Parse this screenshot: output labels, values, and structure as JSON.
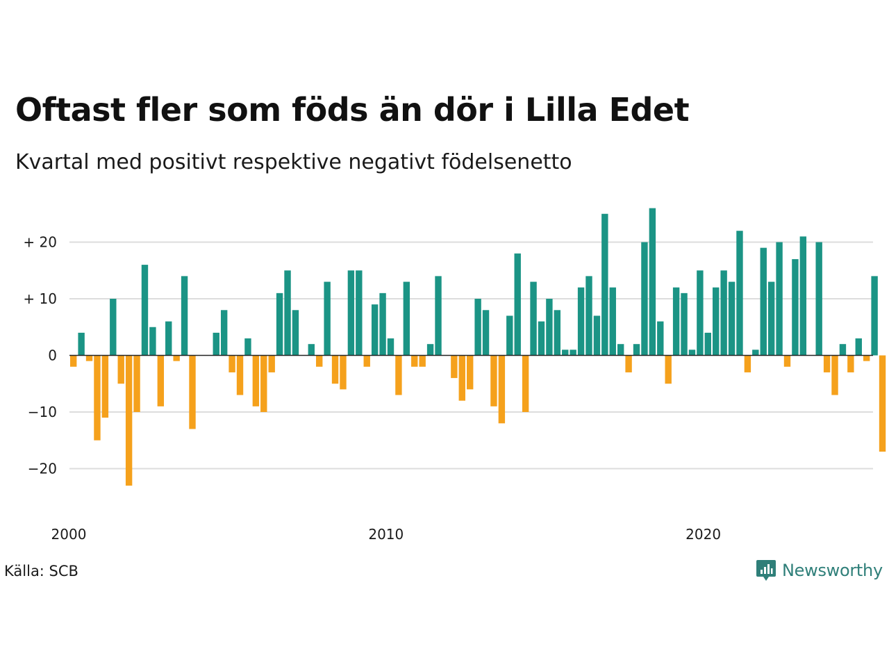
{
  "title": "Oftast fler som föds än dör i Lilla Edet",
  "subtitle": "Kvartal med positivt respektive negativt födelsenetto",
  "source": "Källa: SCB",
  "brand": {
    "name": "Newsworthy",
    "icon": "newsworthy-logo-icon",
    "color": "#2f7f79"
  },
  "colors": {
    "positive": "#1b9485",
    "negative": "#f5a11c",
    "grid": "#dddddd",
    "zero_line": "#222222"
  },
  "chart_data": {
    "type": "bar",
    "title": "Oftast fler som föds än dör i Lilla Edet",
    "subtitle": "Kvartal med positivt respektive negativt födelsenetto",
    "xlabel": "",
    "ylabel": "",
    "ylim": [
      -25,
      27
    ],
    "yticks": [
      {
        "value": 20,
        "label": "+ 20"
      },
      {
        "value": 10,
        "label": "+ 10"
      },
      {
        "value": 0,
        "label": "0"
      },
      {
        "value": -10,
        "label": "−10"
      },
      {
        "value": -20,
        "label": "−20"
      }
    ],
    "xticks": [
      {
        "value": 2000,
        "label": "2000"
      },
      {
        "value": 2010,
        "label": "2010"
      },
      {
        "value": 2020,
        "label": "2020"
      }
    ],
    "grid": true,
    "legend": "none",
    "first_quarter": "2000 Q1",
    "values": [
      -2,
      4,
      -1,
      -15,
      -11,
      10,
      -5,
      -23,
      -10,
      16,
      5,
      -9,
      6,
      -1,
      14,
      -13,
      0,
      0,
      4,
      8,
      -3,
      -7,
      3,
      -9,
      -10,
      -3,
      11,
      15,
      8,
      0,
      2,
      -2,
      13,
      -5,
      -6,
      15,
      15,
      -2,
      9,
      11,
      3,
      -7,
      13,
      -2,
      -2,
      2,
      14,
      0,
      -4,
      -8,
      -6,
      10,
      8,
      -9,
      -12,
      7,
      18,
      -10,
      13,
      6,
      10,
      8,
      1,
      1,
      12,
      14,
      7,
      25,
      12,
      2,
      -3,
      2,
      20,
      26,
      6,
      -5,
      12,
      11,
      1,
      15,
      4,
      12,
      15,
      13,
      22,
      -3,
      1,
      19,
      13,
      20,
      -2,
      17,
      21,
      0,
      20,
      -3,
      -7,
      2,
      -3,
      3,
      -1,
      14,
      -17
    ]
  }
}
